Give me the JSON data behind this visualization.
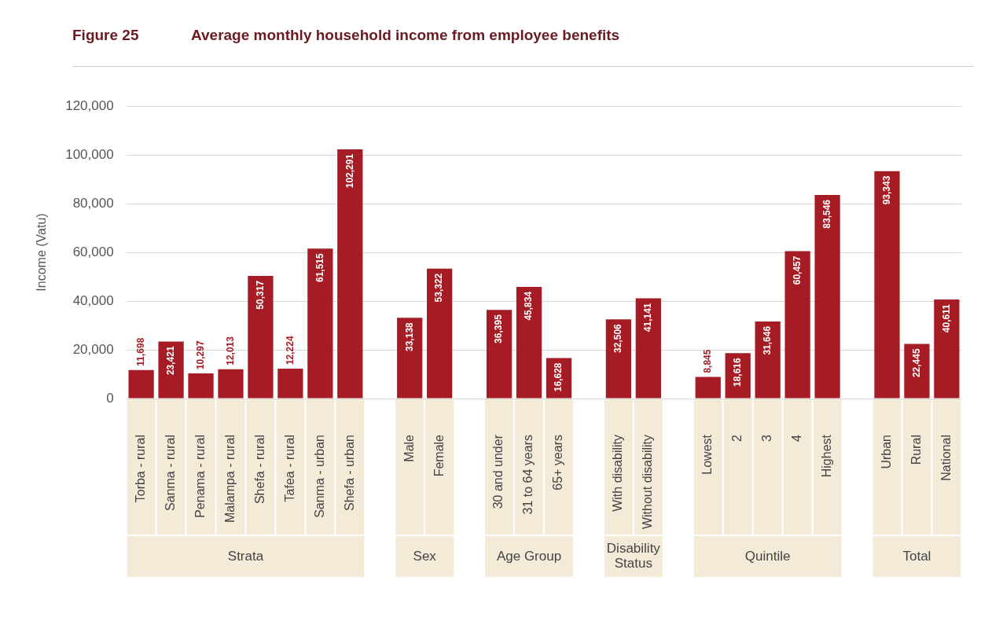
{
  "chart_data": {
    "type": "bar",
    "title": "Figure 25",
    "subtitle": "Average monthly household income from employee benefits",
    "ylabel": "Income (Vatu)",
    "categories": [
      "Torba - rural",
      "Sanma - rural",
      "Penama - rural",
      "Malampa - rural",
      "Shefa - rural",
      "Tafea - rural",
      "Sanma - urban",
      "Shefa - urban",
      null,
      "Male",
      "Female",
      null,
      "30 and under",
      "31 to 64 years",
      "65+ years",
      null,
      "With disability",
      "Without disability",
      null,
      "Lowest",
      "2",
      "3",
      "4",
      "Highest",
      null,
      "Urban",
      "Rural",
      "National"
    ],
    "values": [
      11698,
      23421,
      10297,
      12013,
      50317,
      12224,
      61515,
      102291,
      null,
      33138,
      53322,
      null,
      36395,
      45834,
      16628,
      null,
      32506,
      41141,
      null,
      8845,
      18616,
      31646,
      60457,
      83546,
      null,
      93343,
      22445,
      40611
    ],
    "color": "#a51c24",
    "annotations": [
      "Strata",
      "Sex",
      "Age Group",
      "Disability\nStatus",
      "Quintile",
      "Total"
    ],
    "value_labels": [
      "11,698",
      "23,421",
      "10,297",
      "12,013",
      "50,317",
      "12,224",
      "61,515",
      "102,291",
      null,
      "33,138",
      "53,322",
      null,
      "36,395",
      "45,834",
      "16,628",
      null,
      "32,506",
      "41,141",
      null,
      "8,845",
      "18,616",
      "31,646",
      "60,457",
      "83,546",
      null,
      "93,343",
      "22,445",
      "40,611"
    ],
    "ylim": [
      0,
      120000
    ],
    "yticks": [
      0,
      {
        "value": 20000,
        "label": "20,000"
      },
      {
        "value": 40000,
        "label": "40,000"
      },
      {
        "value": 60000,
        "label": "60,000"
      },
      {
        "value": 80000,
        "label": "80,000"
      },
      {
        "value": 100000,
        "label": "100,000"
      },
      {
        "value": 120000,
        "label": "120,000"
      }
    ],
    "grid": "y",
    "legend": false
  }
}
